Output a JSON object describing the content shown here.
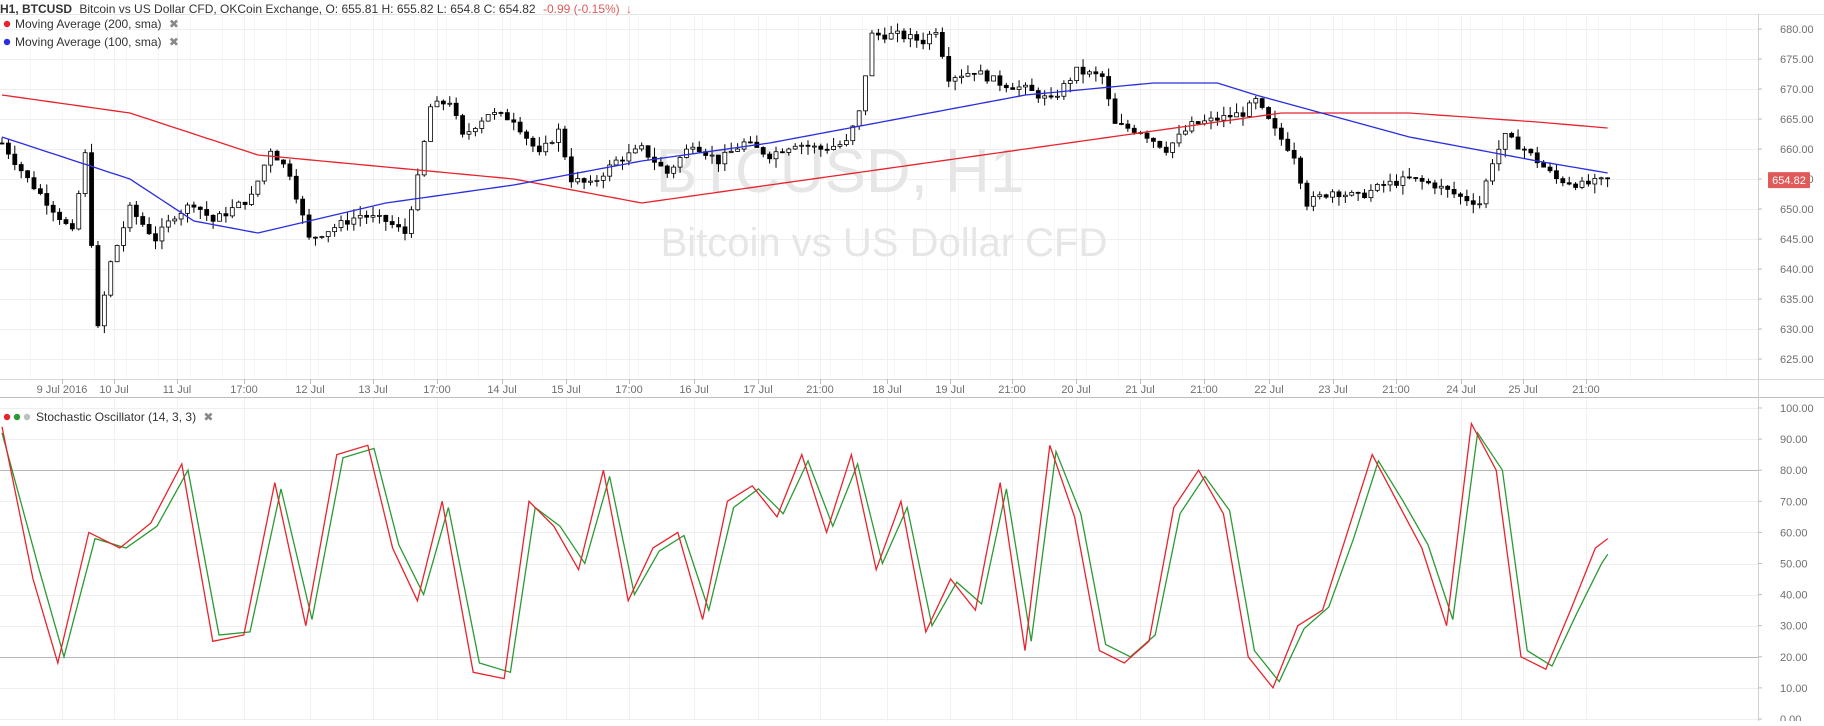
{
  "header": {
    "prefix": "H1, BTCUSD",
    "title": "Bitcoin vs US Dollar CFD, OKCoin Exchange, O: 655.81 H: 655.82 L: 654.8 C: 654.82",
    "change": "-0.99 (-0.15%)",
    "change_arrow": "↓"
  },
  "legend": {
    "ma200": "Moving Average (200, sma)",
    "ma100": "Moving Average (100, sma)",
    "stoch": "Stochastic Oscillator (14, 3, 3)",
    "close_glyph": "✖"
  },
  "watermark": {
    "line1": "BTCUSD, H1",
    "line2": "Bitcoin vs US Dollar CFD"
  },
  "price_label": "654.82",
  "colors": {
    "up": "#ffffff",
    "down": "#000000",
    "candle_outline": "#000000",
    "ma200": "#e8232d",
    "ma100": "#2a2ee0",
    "stoch_k": "#e8232d",
    "stoch_d": "#2b9a33",
    "price_tag": "#e05a5a"
  },
  "chart_data": [
    {
      "type": "candlestick",
      "x_ticks": [
        "9 Jul 2016",
        "10 Jul",
        "11 Jul",
        "17:00",
        "12 Jul",
        "13 Jul",
        "17:00",
        "14 Jul",
        "15 Jul",
        "17:00",
        "16 Jul",
        "17 Jul",
        "21:00",
        "18 Jul",
        "19 Jul",
        "21:00",
        "20 Jul",
        "21 Jul",
        "21:00",
        "22 Jul",
        "23 Jul",
        "21:00",
        "24 Jul",
        "25 Jul",
        "21:00"
      ],
      "y_ticks": [
        "680.00",
        "675.00",
        "670.00",
        "665.00",
        "660.00",
        "655.00",
        "650.00",
        "645.00",
        "640.00",
        "635.00",
        "630.00",
        "625.00"
      ],
      "ylim": [
        623.5,
        682.5
      ],
      "last_close": 654.82,
      "close_path": [
        [
          0,
          661
        ],
        [
          4,
          655
        ],
        [
          8,
          650
        ],
        [
          11,
          646
        ],
        [
          13,
          659
        ],
        [
          15,
          630
        ],
        [
          17,
          641
        ],
        [
          20,
          650
        ],
        [
          24,
          645
        ],
        [
          27,
          649
        ],
        [
          30,
          651
        ],
        [
          33,
          648
        ],
        [
          36,
          650
        ],
        [
          39,
          652
        ],
        [
          42,
          660
        ],
        [
          45,
          656
        ],
        [
          48,
          645
        ],
        [
          52,
          647
        ],
        [
          56,
          649
        ],
        [
          60,
          648
        ],
        [
          63,
          646
        ],
        [
          65,
          655
        ],
        [
          67,
          667
        ],
        [
          70,
          668
        ],
        [
          72,
          662
        ],
        [
          76,
          666
        ],
        [
          80,
          665
        ],
        [
          84,
          659
        ],
        [
          87,
          663
        ],
        [
          89,
          655
        ],
        [
          92,
          654
        ],
        [
          96,
          658
        ],
        [
          100,
          660
        ],
        [
          104,
          656
        ],
        [
          108,
          661
        ],
        [
          112,
          658
        ],
        [
          116,
          661
        ],
        [
          120,
          659
        ],
        [
          124,
          661
        ],
        [
          128,
          660
        ],
        [
          132,
          661
        ],
        [
          134,
          666
        ],
        [
          136,
          679
        ],
        [
          140,
          679
        ],
        [
          144,
          678
        ],
        [
          146,
          680
        ],
        [
          148,
          672
        ],
        [
          152,
          673
        ],
        [
          156,
          671
        ],
        [
          160,
          670
        ],
        [
          164,
          668
        ],
        [
          168,
          673
        ],
        [
          172,
          672
        ],
        [
          174,
          664
        ],
        [
          178,
          663
        ],
        [
          182,
          660
        ],
        [
          186,
          664
        ],
        [
          190,
          665
        ],
        [
          194,
          666
        ],
        [
          196,
          668
        ],
        [
          199,
          663
        ],
        [
          202,
          659
        ],
        [
          204,
          651
        ],
        [
          208,
          653
        ],
        [
          212,
          652
        ],
        [
          216,
          654
        ],
        [
          220,
          655
        ],
        [
          224,
          654
        ],
        [
          228,
          652
        ],
        [
          231,
          651
        ],
        [
          233,
          658
        ],
        [
          235,
          662
        ],
        [
          238,
          660
        ],
        [
          240,
          658
        ],
        [
          243,
          655
        ],
        [
          247,
          654
        ],
        [
          251,
          654.82
        ]
      ],
      "ma200": [
        [
          0,
          669
        ],
        [
          20,
          666
        ],
        [
          40,
          659
        ],
        [
          60,
          657
        ],
        [
          80,
          655
        ],
        [
          100,
          651
        ],
        [
          120,
          654
        ],
        [
          140,
          657
        ],
        [
          160,
          660
        ],
        [
          180,
          663
        ],
        [
          200,
          666
        ],
        [
          220,
          666
        ],
        [
          240,
          664.5
        ],
        [
          251,
          663.5
        ]
      ],
      "ma100": [
        [
          0,
          662
        ],
        [
          20,
          655
        ],
        [
          30,
          648
        ],
        [
          40,
          646
        ],
        [
          60,
          651
        ],
        [
          80,
          654
        ],
        [
          100,
          658
        ],
        [
          120,
          661
        ],
        [
          140,
          665
        ],
        [
          160,
          669
        ],
        [
          180,
          671
        ],
        [
          190,
          671
        ],
        [
          196,
          669
        ],
        [
          220,
          662
        ],
        [
          240,
          658
        ],
        [
          251,
          656
        ]
      ]
    },
    {
      "type": "line",
      "title": "Stochastic Oscillator (14, 3, 3)",
      "y_ticks": [
        "100.00",
        "90.00",
        "80.00",
        "70.00",
        "60.00",
        "50.00",
        "40.00",
        "30.00",
        "20.00",
        "10.00",
        "0.00"
      ],
      "ylim": [
        0,
        100
      ],
      "reference_lines": [
        80,
        20
      ],
      "k_path": [
        [
          0,
          94
        ],
        [
          5,
          45
        ],
        [
          9,
          18
        ],
        [
          14,
          60
        ],
        [
          19,
          55
        ],
        [
          24,
          63
        ],
        [
          29,
          82
        ],
        [
          34,
          25
        ],
        [
          39,
          27
        ],
        [
          44,
          76
        ],
        [
          49,
          30
        ],
        [
          54,
          85
        ],
        [
          59,
          88
        ],
        [
          63,
          55
        ],
        [
          67,
          38
        ],
        [
          71,
          70
        ],
        [
          76,
          15
        ],
        [
          81,
          13
        ],
        [
          85,
          70
        ],
        [
          89,
          62
        ],
        [
          93,
          48
        ],
        [
          97,
          80
        ],
        [
          101,
          38
        ],
        [
          105,
          55
        ],
        [
          109,
          60
        ],
        [
          113,
          32
        ],
        [
          117,
          70
        ],
        [
          121,
          75
        ],
        [
          125,
          65
        ],
        [
          129,
          85
        ],
        [
          133,
          60
        ],
        [
          137,
          85
        ],
        [
          141,
          48
        ],
        [
          145,
          70
        ],
        [
          149,
          28
        ],
        [
          153,
          45
        ],
        [
          157,
          35
        ],
        [
          161,
          76
        ],
        [
          165,
          22
        ],
        [
          169,
          88
        ],
        [
          173,
          65
        ],
        [
          177,
          22
        ],
        [
          181,
          18
        ],
        [
          185,
          25
        ],
        [
          189,
          68
        ],
        [
          193,
          80
        ],
        [
          197,
          66
        ],
        [
          201,
          20
        ],
        [
          205,
          10
        ],
        [
          209,
          30
        ],
        [
          213,
          35
        ],
        [
          217,
          60
        ],
        [
          221,
          85
        ],
        [
          225,
          70
        ],
        [
          229,
          55
        ],
        [
          233,
          30
        ],
        [
          237,
          95
        ],
        [
          241,
          80
        ],
        [
          245,
          20
        ],
        [
          249,
          16
        ],
        [
          253,
          35
        ],
        [
          257,
          55
        ],
        [
          259,
          58
        ]
      ],
      "d_path": [
        [
          0,
          92
        ],
        [
          6,
          48
        ],
        [
          10,
          20
        ],
        [
          15,
          58
        ],
        [
          20,
          55
        ],
        [
          25,
          62
        ],
        [
          30,
          80
        ],
        [
          35,
          27
        ],
        [
          40,
          28
        ],
        [
          45,
          74
        ],
        [
          50,
          32
        ],
        [
          55,
          84
        ],
        [
          60,
          87
        ],
        [
          64,
          56
        ],
        [
          68,
          40
        ],
        [
          72,
          68
        ],
        [
          77,
          18
        ],
        [
          82,
          15
        ],
        [
          86,
          68
        ],
        [
          90,
          62
        ],
        [
          94,
          50
        ],
        [
          98,
          78
        ],
        [
          102,
          40
        ],
        [
          106,
          54
        ],
        [
          110,
          59
        ],
        [
          114,
          35
        ],
        [
          118,
          68
        ],
        [
          122,
          74
        ],
        [
          126,
          66
        ],
        [
          130,
          83
        ],
        [
          134,
          62
        ],
        [
          138,
          82
        ],
        [
          142,
          50
        ],
        [
          146,
          68
        ],
        [
          150,
          30
        ],
        [
          154,
          44
        ],
        [
          158,
          37
        ],
        [
          162,
          74
        ],
        [
          166,
          25
        ],
        [
          170,
          86
        ],
        [
          174,
          66
        ],
        [
          178,
          24
        ],
        [
          182,
          20
        ],
        [
          186,
          27
        ],
        [
          190,
          66
        ],
        [
          194,
          78
        ],
        [
          198,
          67
        ],
        [
          202,
          22
        ],
        [
          206,
          12
        ],
        [
          210,
          29
        ],
        [
          214,
          36
        ],
        [
          218,
          58
        ],
        [
          222,
          83
        ],
        [
          226,
          70
        ],
        [
          230,
          56
        ],
        [
          234,
          32
        ],
        [
          238,
          92
        ],
        [
          242,
          80
        ],
        [
          246,
          22
        ],
        [
          250,
          17
        ],
        [
          254,
          34
        ],
        [
          258,
          50
        ],
        [
          259,
          53
        ]
      ]
    }
  ]
}
